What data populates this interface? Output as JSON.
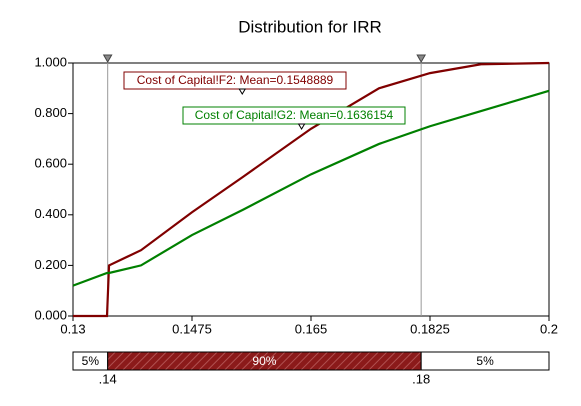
{
  "chart_data": {
    "type": "line",
    "title": "Distribution for IRR",
    "x": [
      0.13,
      0.135,
      0.1353,
      0.14,
      0.1475,
      0.155,
      0.165,
      0.175,
      0.1825,
      0.19,
      0.2
    ],
    "series": [
      {
        "name": "Cost of Capital!F2: Mean=0.1548889",
        "color": "#800000",
        "mean": 0.1548889,
        "values": [
          0,
          0,
          0.2,
          0.26,
          0.41,
          0.55,
          0.74,
          0.9,
          0.96,
          0.995,
          1.0
        ]
      },
      {
        "name": "Cost of Capital!G2: Mean=0.1636154",
        "color": "#008000",
        "mean": 0.1636154,
        "values": [
          0.12,
          0.17,
          0.17,
          0.2,
          0.32,
          0.42,
          0.56,
          0.68,
          0.75,
          0.81,
          0.89
        ]
      }
    ],
    "xlim": [
      0.13,
      0.2
    ],
    "xticks": [
      0.13,
      0.1475,
      0.165,
      0.1825,
      0.2
    ],
    "ylim": [
      0,
      1
    ],
    "yticks": [
      {
        "value": 0,
        "label": "0.000"
      },
      {
        "value": 0.2,
        "label": "0.200"
      },
      {
        "value": 0.4,
        "label": "0.400"
      },
      {
        "value": 0.6,
        "label": "0.600"
      },
      {
        "value": 0.8,
        "label": "0.800"
      },
      {
        "value": 1,
        "label": "1.000"
      }
    ],
    "delimiters": [
      {
        "value": 0.1351,
        "label": ".14"
      },
      {
        "value": 0.1812,
        "label": ".18"
      }
    ],
    "bar_segments": {
      "values": [
        5,
        90,
        5
      ],
      "value_labels": [
        "5%",
        "90%",
        "5%"
      ],
      "color": "#8b1a1a"
    }
  }
}
